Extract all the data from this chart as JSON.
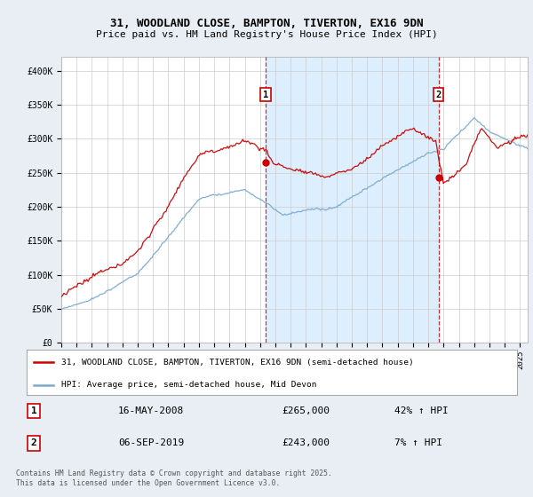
{
  "title_line1": "31, WOODLAND CLOSE, BAMPTON, TIVERTON, EX16 9DN",
  "title_line2": "Price paid vs. HM Land Registry's House Price Index (HPI)",
  "ylabel_ticks": [
    "£0",
    "£50K",
    "£100K",
    "£150K",
    "£200K",
    "£250K",
    "£300K",
    "£350K",
    "£400K"
  ],
  "ylabel_values": [
    0,
    50000,
    100000,
    150000,
    200000,
    250000,
    300000,
    350000,
    400000
  ],
  "ylim": [
    0,
    420000
  ],
  "xlim_start": 1995.0,
  "xlim_end": 2025.5,
  "house_color": "#cc0000",
  "hpi_color": "#7aaad0",
  "shade_color": "#ddeeff",
  "marker1_x": 2008.37,
  "marker1_y": 265000,
  "marker1_label": "1",
  "marker1_date": "16-MAY-2008",
  "marker1_price": "£265,000",
  "marker1_hpi": "42% ↑ HPI",
  "marker2_x": 2019.67,
  "marker2_y": 243000,
  "marker2_label": "2",
  "marker2_date": "06-SEP-2019",
  "marker2_price": "£243,000",
  "marker2_hpi": "7% ↑ HPI",
  "legend_line1": "31, WOODLAND CLOSE, BAMPTON, TIVERTON, EX16 9DN (semi-detached house)",
  "legend_line2": "HPI: Average price, semi-detached house, Mid Devon",
  "footer": "Contains HM Land Registry data © Crown copyright and database right 2025.\nThis data is licensed under the Open Government Licence v3.0.",
  "background_color": "#e8eef4",
  "plot_background": "#ffffff"
}
